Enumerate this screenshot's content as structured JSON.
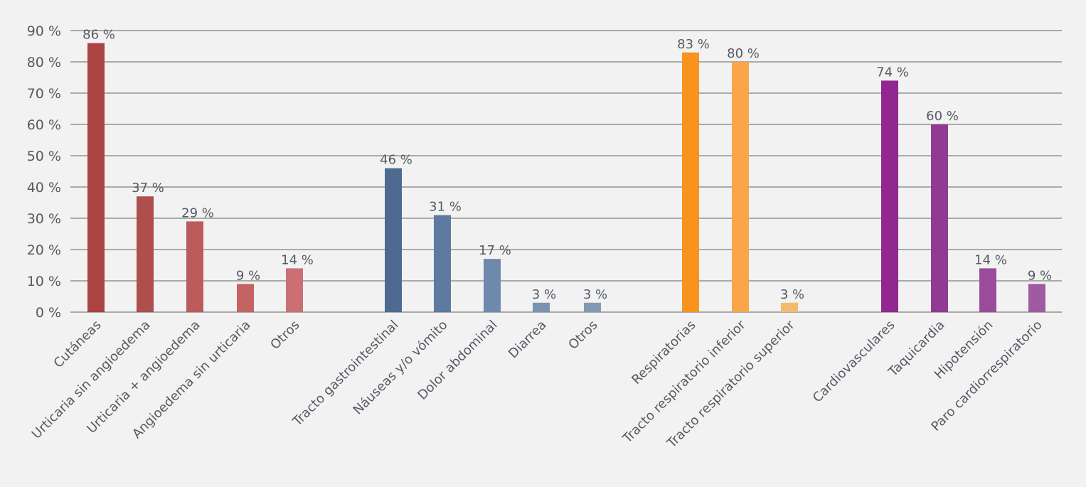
{
  "chart_data": {
    "type": "bar",
    "title": "",
    "xlabel": "",
    "ylabel": "",
    "ylim": [
      0,
      90
    ],
    "yticks": [
      0,
      10,
      20,
      30,
      40,
      50,
      60,
      70,
      80,
      90
    ],
    "ytick_labels": [
      "0 %",
      "10 %",
      "20 %",
      "30 %",
      "40 %",
      "50 %",
      "60 %",
      "70 %",
      "80 %",
      "90 %"
    ],
    "grid": true,
    "legend": "none",
    "groups": [
      {
        "categories": [
          "Cutáneas",
          "Urticaria sin angioedema",
          "Urticaria + angioedema",
          "Angioedema sin urticaria",
          "Otros"
        ],
        "values": [
          86,
          37,
          29,
          9,
          14
        ],
        "labels": [
          "86 %",
          "37 %",
          "29 %",
          "9 %",
          "14 %"
        ],
        "colors": [
          "#a94442",
          "#ae4e4d",
          "#bb5b5b",
          "#c56262",
          "#cb6f73"
        ]
      },
      {
        "categories": [
          "Tracto gastrointestinal",
          "Náuseas y/o vómito",
          "Dolor abdominal",
          "Diarrea",
          "Otros"
        ],
        "values": [
          46,
          31,
          17,
          3,
          3
        ],
        "labels": [
          "46 %",
          "31 %",
          "17 %",
          "3 %",
          "3 %"
        ],
        "colors": [
          "#4e6a91",
          "#5e7a9e",
          "#6e89ab",
          "#7a93b0",
          "#8399b3"
        ]
      },
      {
        "categories": [
          "Respiratorias",
          "Tracto respiratorio inferior",
          "Tracto respiratorio superior"
        ],
        "values": [
          83,
          80,
          3
        ],
        "labels": [
          "83 %",
          "80 %",
          "3 %"
        ],
        "colors": [
          "#f7931e",
          "#f9a54a",
          "#f2bb6b"
        ]
      },
      {
        "categories": [
          "Cardiovasculares",
          "Taquicardia",
          "Hipotensión",
          "Paro cardiorrespiratorio"
        ],
        "values": [
          74,
          60,
          14,
          9
        ],
        "labels": [
          "74 %",
          "60 %",
          "14 %",
          "9 %"
        ],
        "colors": [
          "#92278f",
          "#923a91",
          "#9a4c9b",
          "#a05aa2"
        ]
      }
    ]
  }
}
